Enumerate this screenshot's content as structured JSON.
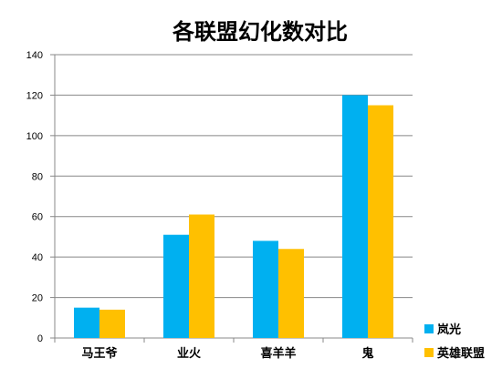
{
  "chart_data": {
    "type": "bar",
    "title": "各联盟幻化数对比",
    "categories": [
      "马王爷",
      "业火",
      "喜羊羊",
      "鬼"
    ],
    "series": [
      {
        "name": "岚光",
        "values": [
          15,
          51,
          48,
          120
        ],
        "color": "#00b0f0"
      },
      {
        "name": "英雄联盟",
        "values": [
          14,
          61,
          44,
          115
        ],
        "color": "#ffc000"
      }
    ],
    "ylim": [
      0,
      140
    ],
    "yticks": [
      0,
      20,
      40,
      60,
      80,
      100,
      120,
      140
    ],
    "grid": true,
    "legend_position": "right-bottom",
    "xlabel": "",
    "ylabel": ""
  }
}
